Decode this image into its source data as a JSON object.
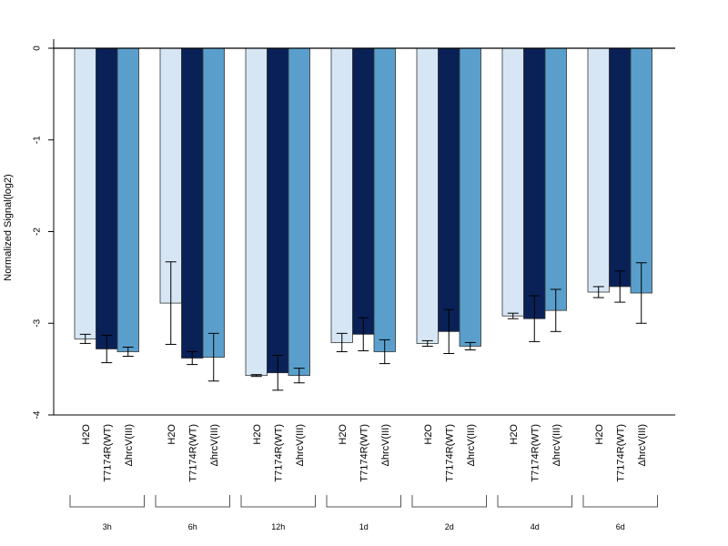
{
  "chart_data": {
    "type": "bar",
    "ylabel": "Normalized Signal(log2)",
    "ylim": [
      -4,
      0
    ],
    "yticks": [
      0,
      -1,
      -2,
      -3,
      -4
    ],
    "grid": false,
    "legend": "none",
    "groups": [
      "3h",
      "6h",
      "12h",
      "1d",
      "2d",
      "4d",
      "6d"
    ],
    "bar_labels": [
      "H2O",
      "T7174R(WT)",
      "ΔhrcV(III)"
    ],
    "colors": [
      "#d6e6f5",
      "#0a2157",
      "#5a9fcc"
    ],
    "series": [
      {
        "name": "H2O",
        "values": [
          -3.17,
          -2.78,
          -3.57,
          -3.21,
          -3.22,
          -2.92,
          -2.66
        ],
        "errors": [
          0.05,
          0.45,
          0.01,
          0.1,
          0.03,
          0.03,
          0.06
        ]
      },
      {
        "name": "T7174R(WT)",
        "values": [
          -3.28,
          -3.38,
          -3.54,
          -3.12,
          -3.09,
          -2.95,
          -2.6
        ],
        "errors": [
          0.15,
          0.07,
          0.19,
          0.18,
          0.24,
          0.25,
          0.17
        ]
      },
      {
        "name": "ΔhrcV(III)",
        "values": [
          -3.31,
          -3.37,
          -3.57,
          -3.31,
          -3.25,
          -2.86,
          -2.67
        ],
        "errors": [
          0.05,
          0.26,
          0.08,
          0.13,
          0.04,
          0.23,
          0.33
        ]
      }
    ]
  }
}
